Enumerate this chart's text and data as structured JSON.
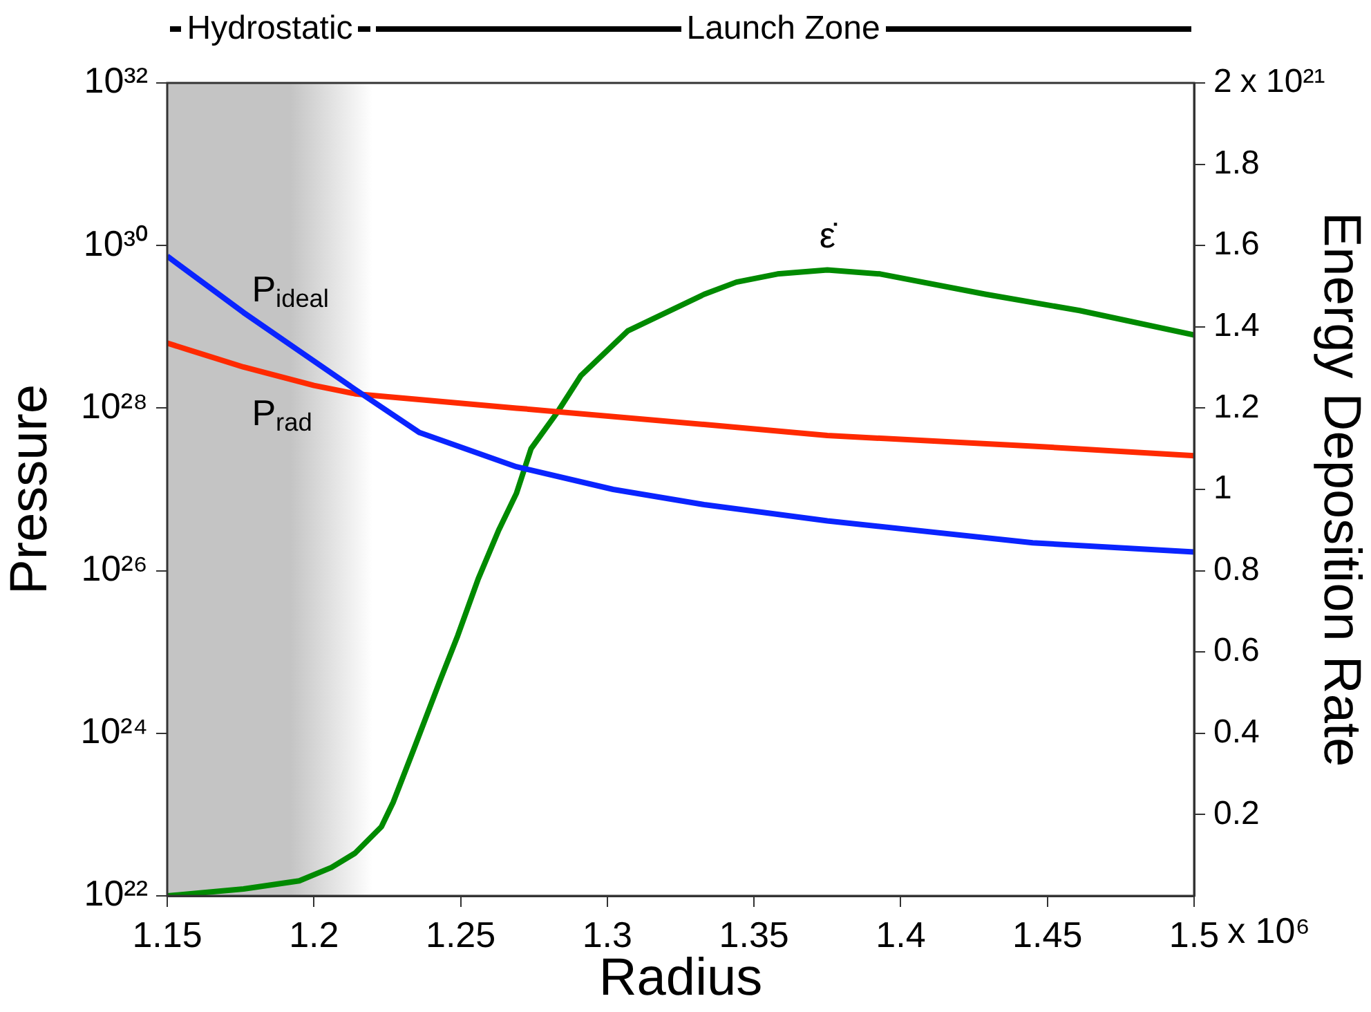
{
  "chart_data": {
    "type": "line",
    "xlabel": "Radius",
    "ylabel": "Pressure",
    "y2label": "Energy Deposition Rate",
    "annotations": [
      "Launch Zone",
      "x 10⁶",
      "x 10²¹"
    ],
    "log": "y",
    "grid": false,
    "legend": false,
    "marker": "none",
    "line_style": "solid",
    "xlim": [
      1.15,
      1.5
    ],
    "xticks": [
      1.15,
      1.2,
      1.25,
      1.3,
      1.35,
      1.4,
      1.45,
      1.5
    ],
    "ylim": [
      1e+22,
      1e+32
    ],
    "yticks": [
      {
        "value": 1e+22,
        "label": "10²²"
      },
      {
        "value": 1e+24,
        "label": "10²⁴"
      },
      {
        "value": 1e+26,
        "label": "10²⁶"
      },
      {
        "value": 1e+28,
        "label": "10²⁸"
      },
      {
        "value": 1e+30,
        "label": "10³⁰"
      },
      {
        "value": 1e+32,
        "label": "10³²"
      }
    ],
    "y2lim": [
      0,
      2
    ],
    "y2ticks": [
      0.2,
      0.4,
      0.6,
      0.8,
      1,
      1.2,
      1.4,
      1.6,
      1.8,
      2
    ],
    "bands": [
      {
        "axis": "x",
        "from": 1.15,
        "to": 1.22,
        "label": "Hydrostatic",
        "color": "#c4c4c4"
      }
    ],
    "series": [
      {
        "name": "P$_{ideal}$",
        "color": "#0a24ff",
        "x": [
          1.15,
          1.176,
          1.214,
          1.236,
          1.269,
          1.302,
          1.333,
          1.375,
          1.445,
          1.5
        ],
        "values": [
          7.4e+29,
          1.5e+29,
          1.7e+28,
          5e+27,
          1.9e+27,
          1e+27,
          6.5e+26,
          4.1e+26,
          2.2e+26,
          1.7e+26
        ]
      },
      {
        "name": "P$_{rad}$",
        "color": "#ff2a00",
        "x": [
          1.15,
          1.176,
          1.2,
          1.214,
          1.269,
          1.333,
          1.375,
          1.445,
          1.5
        ],
        "values": [
          6.3e+28,
          3.2e+28,
          1.9e+28,
          1.5e+28,
          1e+28,
          6.3e+27,
          4.6e+27,
          3.4e+27,
          2.6e+27
        ]
      },
      {
        "name": "ε̇",
        "color": "#008a00",
        "axis": "y2",
        "x": [
          1.15,
          1.176,
          1.195,
          1.206,
          1.214,
          1.223,
          1.227,
          1.234,
          1.243,
          1.249,
          1.256,
          1.263,
          1.269,
          1.274,
          1.283,
          1.291,
          1.307,
          1.333,
          1.344,
          1.358,
          1.375,
          1.393,
          1.429,
          1.461,
          1.5
        ],
        "values": [
          0,
          0.017,
          0.037,
          0.07,
          0.105,
          0.17,
          0.23,
          0.36,
          0.53,
          0.64,
          0.78,
          0.9,
          0.99,
          1.1,
          1.19,
          1.28,
          1.39,
          1.48,
          1.51,
          1.53,
          1.54,
          1.53,
          1.48,
          1.44,
          1.38
        ]
      }
    ]
  }
}
